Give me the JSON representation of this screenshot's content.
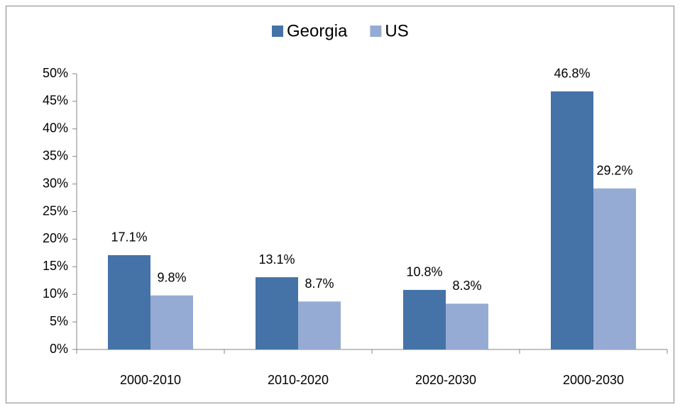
{
  "chart_data": {
    "type": "bar",
    "categories": [
      "2000-2010",
      "2010-2020",
      "2020-2030",
      "2000-2030"
    ],
    "series": [
      {
        "name": "Georgia",
        "color": "#4572a7",
        "values": [
          17.1,
          13.1,
          10.8,
          46.8
        ],
        "value_labels": [
          "17.1%",
          "13.1%",
          "10.8%",
          "46.8%"
        ]
      },
      {
        "name": "US",
        "color": "#95abd3",
        "values": [
          9.8,
          8.7,
          8.3,
          29.2
        ],
        "value_labels": [
          "9.8%",
          "8.7%",
          "8.3%",
          "29.2%"
        ]
      }
    ],
    "ylim": [
      0,
      50
    ],
    "yticks": [
      {
        "value": 0,
        "label": "0%"
      },
      {
        "value": 5,
        "label": "5%"
      },
      {
        "value": 10,
        "label": "10%"
      },
      {
        "value": 15,
        "label": "15%"
      },
      {
        "value": 20,
        "label": "20%"
      },
      {
        "value": 25,
        "label": "25%"
      },
      {
        "value": 30,
        "label": "30%"
      },
      {
        "value": 35,
        "label": "35%"
      },
      {
        "value": 40,
        "label": "40%"
      },
      {
        "value": 45,
        "label": "45%"
      },
      {
        "value": 50,
        "label": "50%"
      }
    ],
    "legend": "top",
    "grid": false
  }
}
